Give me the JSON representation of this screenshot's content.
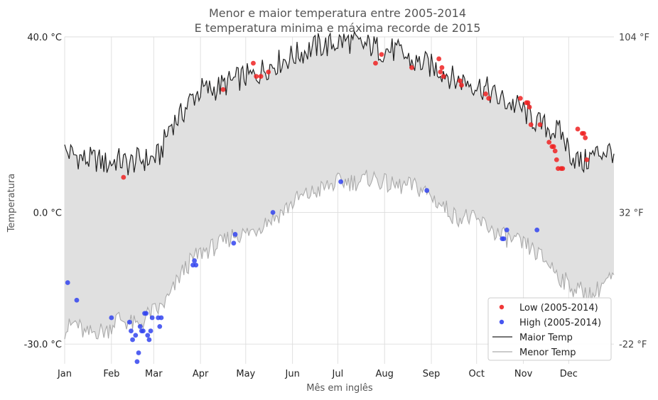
{
  "chart_data": {
    "type": "line",
    "title": "Menor e maior temperatura entre 2005-2014",
    "subtitle": "E temperatura minima e máxima recorde de 2015",
    "xlabel": "Mês em inglês",
    "ylabel": "Temperatura",
    "x_unit": "day of year",
    "xlim": [
      1,
      365
    ],
    "ylim": [
      -34.5,
      40
    ],
    "y_ticks": [
      {
        "value": 40,
        "label": "40.0 °C"
      },
      {
        "value": 0,
        "label": "0.0 °C"
      },
      {
        "value": -30,
        "label": "-30.0 °C"
      }
    ],
    "y2_ticks": [
      {
        "value": 40,
        "label": "104 °F"
      },
      {
        "value": 0,
        "label": "32 °F"
      },
      {
        "value": -30,
        "label": "-22 °F"
      }
    ],
    "months": [
      {
        "label": "Jan",
        "day": 1
      },
      {
        "label": "Feb",
        "day": 32
      },
      {
        "label": "Mar",
        "day": 60
      },
      {
        "label": "Apr",
        "day": 91
      },
      {
        "label": "May",
        "day": 121
      },
      {
        "label": "Jun",
        "day": 152
      },
      {
        "label": "Jul",
        "day": 182
      },
      {
        "label": "Aug",
        "day": 213
      },
      {
        "label": "Sep",
        "day": 244
      },
      {
        "label": "Oct",
        "day": 274
      },
      {
        "label": "Nov",
        "day": 305
      },
      {
        "label": "Dec",
        "day": 335
      }
    ],
    "grid": true,
    "legend_position": "bottom-right",
    "series": [
      {
        "name": "Maior Temp",
        "kind": "line",
        "color": "#222222",
        "x": [
          1,
          8,
          15,
          22,
          29,
          36,
          43,
          50,
          57,
          64,
          71,
          78,
          85,
          92,
          99,
          106,
          113,
          120,
          127,
          134,
          141,
          148,
          155,
          162,
          169,
          176,
          183,
          190,
          197,
          204,
          211,
          218,
          225,
          232,
          239,
          246,
          253,
          260,
          267,
          274,
          281,
          288,
          295,
          302,
          309,
          316,
          323,
          330,
          337,
          344,
          351,
          358,
          365
        ],
        "y": [
          14,
          13,
          12,
          12,
          11,
          12,
          11,
          12,
          12,
          13,
          20,
          22,
          26,
          28,
          28,
          29,
          30,
          31,
          31,
          33,
          34,
          35,
          36,
          37,
          38,
          38,
          39,
          39,
          38,
          38,
          37,
          37,
          36,
          34,
          34,
          33,
          32,
          30,
          30,
          29,
          28,
          26,
          25,
          24,
          22,
          20,
          19,
          18,
          13,
          11,
          13,
          14,
          14
        ]
      },
      {
        "name": "Menor Temp",
        "kind": "line",
        "color": "#aaaaaa",
        "x": [
          1,
          8,
          15,
          22,
          29,
          36,
          43,
          50,
          57,
          64,
          71,
          78,
          85,
          92,
          99,
          106,
          113,
          120,
          127,
          134,
          141,
          148,
          155,
          162,
          169,
          176,
          183,
          190,
          197,
          204,
          211,
          218,
          225,
          232,
          239,
          246,
          253,
          260,
          267,
          274,
          281,
          288,
          295,
          302,
          309,
          316,
          323,
          330,
          337,
          344,
          351,
          358,
          365
        ],
        "y": [
          -27,
          -25,
          -28,
          -27,
          -27,
          -24,
          -25,
          -26,
          -23,
          -22,
          -19,
          -14,
          -11,
          -9,
          -8,
          -7,
          -5,
          -5,
          -4,
          -2,
          -1,
          1,
          3,
          4,
          5,
          6,
          7,
          7,
          7,
          8,
          7,
          6,
          6,
          6,
          5,
          3,
          1,
          -1,
          -1,
          -2,
          -3,
          -5,
          -6,
          -7,
          -8,
          -10,
          -12,
          -15,
          -17,
          -18,
          -19,
          -16,
          -15
        ]
      },
      {
        "name": "Low (2005-2014)",
        "kind": "scatter",
        "color": "#ee2222",
        "x": [
          40,
          106,
          126,
          128,
          131,
          136,
          207,
          211,
          231,
          249,
          250,
          251,
          252,
          263,
          264,
          280,
          282,
          303,
          307,
          308,
          309,
          310,
          316,
          322,
          324,
          325,
          326,
          327,
          328,
          330,
          331,
          341,
          344,
          345,
          346,
          347
        ],
        "y": [
          8,
          28,
          34,
          31,
          31,
          32,
          34,
          36,
          33,
          35,
          32,
          33,
          31,
          30,
          29,
          27,
          26,
          26,
          25,
          25,
          24,
          20,
          20,
          16,
          15,
          15,
          14,
          12,
          10,
          10,
          10,
          19,
          18,
          18,
          17,
          12
        ]
      },
      {
        "name": "High (2005-2014)",
        "kind": "scatter",
        "color": "#3344ee",
        "x": [
          3,
          9,
          32,
          44,
          45,
          46,
          48,
          49,
          50,
          51,
          52,
          53,
          54,
          55,
          56,
          57,
          58,
          59,
          63,
          64,
          65,
          86,
          87,
          88,
          113,
          114,
          139,
          184,
          241,
          291,
          292,
          294,
          314
        ],
        "y": [
          -16,
          -20,
          -24,
          -25,
          -27,
          -29,
          -28,
          -34,
          -32,
          -26,
          -27,
          -27,
          -23,
          -23,
          -28,
          -29,
          -27,
          -24,
          -24,
          -26,
          -24,
          -12,
          -11,
          -12,
          -7,
          -5,
          0,
          7,
          5,
          -6,
          -6,
          -4,
          -4
        ]
      }
    ]
  }
}
